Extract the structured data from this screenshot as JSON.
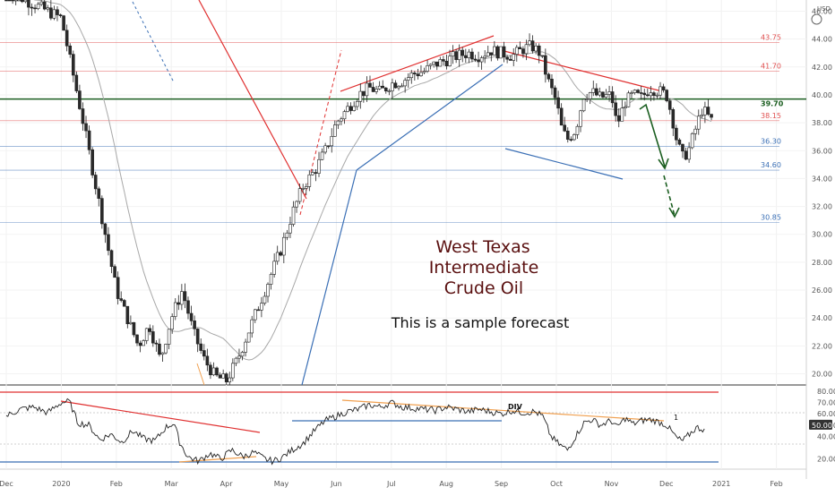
{
  "currency_label": "USD",
  "annotation": {
    "title_lines": [
      "West Texas",
      "Intermediate",
      "Crude Oil"
    ],
    "subtitle": "This is a sample forecast"
  },
  "chart_data": [
    {
      "type": "candlestick",
      "title": "",
      "x_tick_labels": [
        "Dec",
        "2020",
        "Feb",
        "Mar",
        "Apr",
        "May",
        "Jun",
        "Jul",
        "Aug",
        "Sep",
        "Oct",
        "Nov",
        "Dec",
        "2021",
        "Feb"
      ],
      "y_ticks": [
        20.0,
        22.0,
        24.0,
        26.0,
        28.0,
        30.0,
        32.0,
        34.0,
        36.0,
        38.0,
        40.0,
        42.0,
        44.0,
        46.0
      ],
      "y_tick_labels": [
        "20.00",
        "22.00",
        "24.00",
        "26.00",
        "28.00",
        "30.00",
        "32.00",
        "34.00",
        "36.00",
        "38.00",
        "40.00",
        "42.00",
        "44.00",
        "46.00"
      ],
      "ylim": [
        19.2,
        46.8
      ],
      "horizontal_levels": [
        {
          "label": "43.75",
          "value": 43.75,
          "color": "#e05050"
        },
        {
          "label": "41.70",
          "value": 41.7,
          "color": "#e05050"
        },
        {
          "label": "39.70",
          "value": 39.7,
          "color": "#1b5e20"
        },
        {
          "label": "38.15",
          "value": 38.15,
          "color": "#e05050"
        },
        {
          "label": "36.30",
          "value": 36.3,
          "color": "#3a6fb5"
        },
        {
          "label": "34.60",
          "value": 34.6,
          "color": "#3a6fb5"
        },
        {
          "label": "30.85",
          "value": 30.85,
          "color": "#3a6fb5"
        }
      ],
      "price_path": [
        [
          0.0,
          47.5
        ],
        [
          1.0,
          45.5
        ],
        [
          1.4,
          38.0
        ],
        [
          1.6,
          34.0
        ],
        [
          1.8,
          30.0
        ],
        [
          2.0,
          26.0
        ],
        [
          2.2,
          24.0
        ],
        [
          2.4,
          22.0
        ],
        [
          2.6,
          23.5
        ],
        [
          2.8,
          21.0
        ],
        [
          3.0,
          24.0
        ],
        [
          3.2,
          26.0
        ],
        [
          3.4,
          23.0
        ],
        [
          3.6,
          21.0
        ],
        [
          3.8,
          19.8
        ],
        [
          4.0,
          19.5
        ],
        [
          4.2,
          21.0
        ],
        [
          4.4,
          23.0
        ],
        [
          4.6,
          25.0
        ],
        [
          4.8,
          27.0
        ],
        [
          5.0,
          29.0
        ],
        [
          5.2,
          31.5
        ],
        [
          5.4,
          33.5
        ],
        [
          5.6,
          34.5
        ],
        [
          5.8,
          36.0
        ],
        [
          6.0,
          38.0
        ],
        [
          6.2,
          39.0
        ],
        [
          6.4,
          40.0
        ],
        [
          6.6,
          40.5
        ],
        [
          6.8,
          40.2
        ],
        [
          7.0,
          40.8
        ],
        [
          7.2,
          41.0
        ],
        [
          7.4,
          41.5
        ],
        [
          7.6,
          41.7
        ],
        [
          7.8,
          42.2
        ],
        [
          8.0,
          42.5
        ],
        [
          8.2,
          42.8
        ],
        [
          8.4,
          43.0
        ],
        [
          8.6,
          42.8
        ],
        [
          8.8,
          43.2
        ],
        [
          9.0,
          43.0
        ],
        [
          9.2,
          42.8
        ],
        [
          9.4,
          43.3
        ],
        [
          9.55,
          43.5
        ],
        [
          9.7,
          43.0
        ],
        [
          9.85,
          41.0
        ],
        [
          10.0,
          39.5
        ],
        [
          10.1,
          37.5
        ],
        [
          10.2,
          36.8
        ],
        [
          10.35,
          37.5
        ],
        [
          10.5,
          40.0
        ],
        [
          10.65,
          40.2
        ],
        [
          10.8,
          39.8
        ],
        [
          11.0,
          40.0
        ],
        [
          11.1,
          37.8
        ],
        [
          11.25,
          39.5
        ],
        [
          11.4,
          40.0
        ],
        [
          11.55,
          39.8
        ],
        [
          11.7,
          40.5
        ],
        [
          11.85,
          40.3
        ],
        [
          12.0,
          40.0
        ],
        [
          12.1,
          38.5
        ],
        [
          12.2,
          36.5
        ],
        [
          12.3,
          35.5
        ],
        [
          12.4,
          36.0
        ],
        [
          12.55,
          37.8
        ],
        [
          12.65,
          39.0
        ],
        [
          12.75,
          38.5
        ],
        [
          12.85,
          38.0
        ]
      ]
    },
    {
      "type": "line",
      "title": "",
      "y_tick_labels": [
        "20.00",
        "40.00",
        "50.00",
        "60.00",
        "70.00",
        "80.00"
      ],
      "y_ticks": [
        20,
        40,
        50,
        60,
        70,
        80
      ],
      "ylim": [
        11,
        84
      ],
      "current_value_label": "50.00",
      "annotations": [
        "DIV",
        "1"
      ],
      "series_path": [
        [
          0.0,
          58
        ],
        [
          0.25,
          64
        ],
        [
          0.5,
          66
        ],
        [
          0.75,
          61
        ],
        [
          1.0,
          70
        ],
        [
          1.15,
          71
        ],
        [
          1.3,
          52
        ],
        [
          1.5,
          50
        ],
        [
          1.7,
          37
        ],
        [
          1.9,
          42
        ],
        [
          2.1,
          35
        ],
        [
          2.3,
          45
        ],
        [
          2.5,
          38
        ],
        [
          2.7,
          36
        ],
        [
          2.9,
          48
        ],
        [
          3.05,
          52
        ],
        [
          3.15,
          35
        ],
        [
          3.3,
          22
        ],
        [
          3.5,
          18
        ],
        [
          3.7,
          25
        ],
        [
          3.9,
          20
        ],
        [
          4.1,
          28
        ],
        [
          4.3,
          22
        ],
        [
          4.5,
          26
        ],
        [
          4.7,
          20
        ],
        [
          4.85,
          18
        ],
        [
          5.0,
          21
        ],
        [
          5.2,
          28
        ],
        [
          5.4,
          34
        ],
        [
          5.6,
          45
        ],
        [
          5.8,
          54
        ],
        [
          6.0,
          58
        ],
        [
          6.2,
          62
        ],
        [
          6.4,
          64
        ],
        [
          6.6,
          68
        ],
        [
          6.8,
          66
        ],
        [
          7.0,
          70
        ],
        [
          7.2,
          66
        ],
        [
          7.4,
          65
        ],
        [
          7.6,
          64
        ],
        [
          7.8,
          63
        ],
        [
          8.0,
          66
        ],
        [
          8.2,
          64
        ],
        [
          8.4,
          62
        ],
        [
          8.6,
          64
        ],
        [
          8.8,
          62
        ],
        [
          9.0,
          60
        ],
        [
          9.2,
          63
        ],
        [
          9.4,
          61
        ],
        [
          9.6,
          62
        ],
        [
          9.75,
          58
        ],
        [
          9.9,
          40
        ],
        [
          10.05,
          33
        ],
        [
          10.2,
          28
        ],
        [
          10.35,
          40
        ],
        [
          10.5,
          52
        ],
        [
          10.65,
          55
        ],
        [
          10.8,
          50
        ],
        [
          11.0,
          54
        ],
        [
          11.1,
          48
        ],
        [
          11.25,
          56
        ],
        [
          11.4,
          51
        ],
        [
          11.55,
          54
        ],
        [
          11.7,
          55
        ],
        [
          11.85,
          53
        ],
        [
          12.0,
          50
        ],
        [
          12.1,
          44
        ],
        [
          12.2,
          38
        ],
        [
          12.3,
          36
        ],
        [
          12.4,
          41
        ],
        [
          12.55,
          48
        ],
        [
          12.7,
          46
        ]
      ]
    }
  ],
  "colors": {
    "bull": "#ffffff",
    "bear": "#2a2a2a",
    "wick": "#222222",
    "trend_red": "#e03030",
    "trend_blue": "#3a6fb5",
    "trend_orange": "#f0a050",
    "ma": "#a8a8a8",
    "forecast_arrow": "#1b5e20",
    "rsi_line": "#222222"
  }
}
